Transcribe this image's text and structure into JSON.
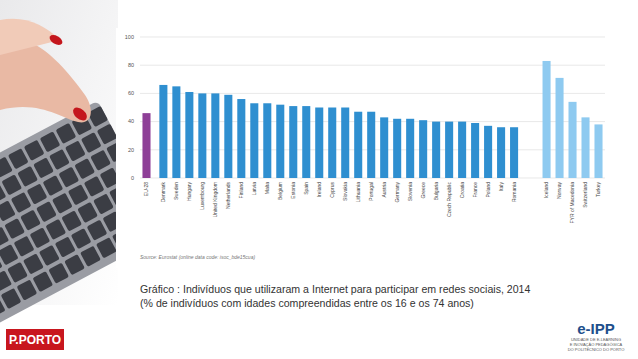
{
  "chart_data": {
    "type": "bar",
    "title": "Gráfico : Indivíduos que utilizaram a Internet para participar em redes sociais, 2014",
    "subtitle": "(% de indivíduos com idades compreendidas entre os 16 e os 74 anos)",
    "annotations": [
      "Source: Eurostat (online data code: isoc_bde15cua)"
    ],
    "categories": [
      "EU-28",
      "Denmark",
      "Sweden",
      "Hungary",
      "Luxembourg",
      "United Kingdom",
      "Netherlands",
      "Finland",
      "Latvia",
      "Malta",
      "Belgium",
      "Estonia",
      "Spain",
      "Ireland",
      "Cyprus",
      "Slovakia",
      "Lithuania",
      "Portugal",
      "Austria",
      "Germany",
      "Slovenia",
      "Greece",
      "Bulgaria",
      "Czech Republic",
      "Croatia",
      "France",
      "Poland",
      "Italy",
      "Romania",
      "Iceland",
      "Norway",
      "FYR of Macedonia",
      "Switzerland",
      "Turkey"
    ],
    "values": [
      46,
      66,
      65,
      61,
      60,
      60,
      59,
      56,
      53,
      53,
      52,
      51,
      51,
      50,
      50,
      50,
      47,
      47,
      43,
      42,
      42,
      41,
      40,
      40,
      40,
      39,
      37,
      36,
      36,
      83,
      71,
      54,
      43,
      38
    ],
    "colors": [
      "#8e3f97",
      "#2f8fd0",
      "#2f8fd0",
      "#2f8fd0",
      "#2f8fd0",
      "#2f8fd0",
      "#2f8fd0",
      "#2f8fd0",
      "#2f8fd0",
      "#2f8fd0",
      "#2f8fd0",
      "#2f8fd0",
      "#2f8fd0",
      "#2f8fd0",
      "#2f8fd0",
      "#2f8fd0",
      "#2f8fd0",
      "#2f8fd0",
      "#2f8fd0",
      "#2f8fd0",
      "#2f8fd0",
      "#2f8fd0",
      "#2f8fd0",
      "#2f8fd0",
      "#2f8fd0",
      "#2f8fd0",
      "#2f8fd0",
      "#2f8fd0",
      "#2f8fd0",
      "#8ecaf0",
      "#8ecaf0",
      "#8ecaf0",
      "#8ecaf0",
      "#8ecaf0"
    ],
    "ylim": [
      0,
      100
    ],
    "yticks": [
      0,
      20,
      40,
      60,
      80,
      100
    ],
    "grid": true
  },
  "slide": {
    "logo_left": "P.PORTO",
    "logo_right": "e-IPP",
    "logo_right_text": [
      "UNIDADE DE E-LEARNING",
      "E INOVAÇÃO PEDAGÓGICA",
      "DO POLITÉCNICO DO PORTO"
    ]
  }
}
